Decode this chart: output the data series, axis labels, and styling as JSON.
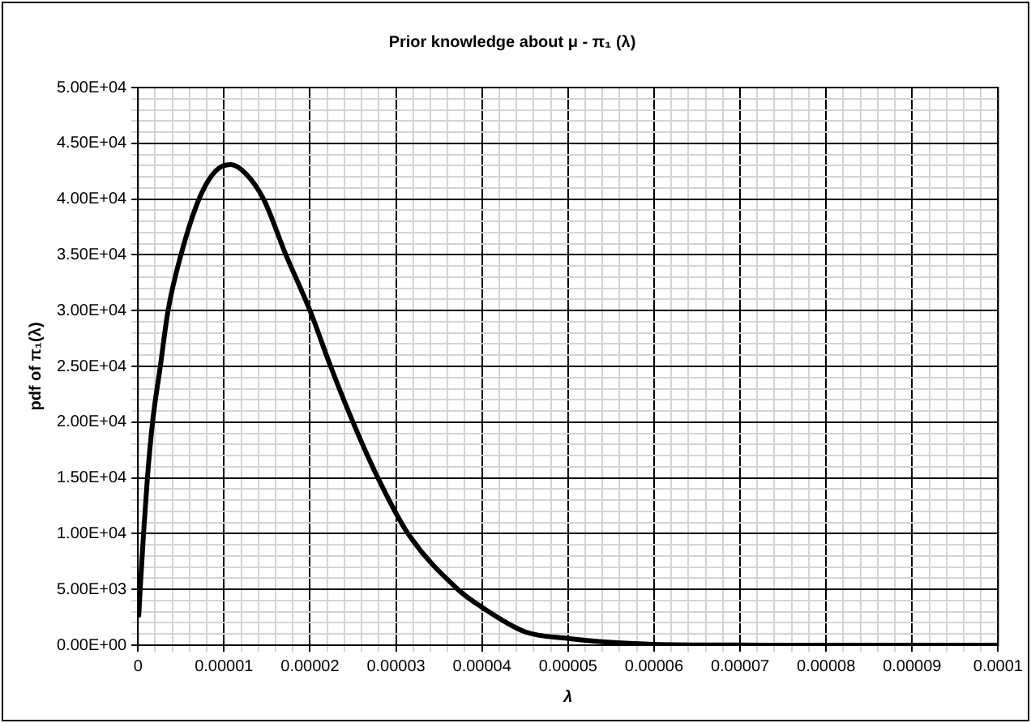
{
  "chart_data": {
    "type": "line",
    "title": "Prior knowledge about μ - π₁ (λ)",
    "xlabel": "λ",
    "ylabel": "pdf of π₁(λ)",
    "x": [
      1e-07,
      2.6e-07,
      6.5e-07,
      1.1e-06,
      1.7e-06,
      2.6e-06,
      3.5e-06,
      5e-06,
      7.1e-06,
      9e-06,
      1.08e-05,
      1.25e-05,
      1.46e-05,
      1.72e-05,
      2e-05,
      2.24e-05,
      2.5e-05,
      2.79e-05,
      3.14e-05,
      3.72e-05,
      4e-05,
      4.5e-05,
      5e-05,
      5.5e-05,
      6e-05,
      7e-05,
      8e-05,
      9e-05,
      0.0001
    ],
    "series": [
      {
        "color": "#000000",
        "values": [
          2700,
          5000,
          10000,
          15000,
          20000,
          25000,
          30000,
          35000,
          40000,
          42500,
          43100,
          42300,
          40000,
          35000,
          30000,
          25000,
          20000,
          15000,
          10000,
          5000,
          3400,
          1200,
          600,
          250,
          80,
          10,
          0,
          0,
          0
        ]
      }
    ],
    "marker": "none",
    "line_style": "solid",
    "legend": false,
    "grid": true,
    "xlim": [
      0,
      0.0001
    ],
    "ylim": [
      0,
      50000
    ],
    "xticks": [
      {
        "value": 0,
        "label": "0"
      },
      {
        "value": 2e-06,
        "label": null
      },
      {
        "value": 4e-06,
        "label": null
      },
      {
        "value": 6e-06,
        "label": null
      },
      {
        "value": 8e-06,
        "label": null
      },
      {
        "value": 1e-05,
        "label": "0.00001"
      },
      {
        "value": 1.2e-05,
        "label": null
      },
      {
        "value": 1.4e-05,
        "label": null
      },
      {
        "value": 1.6e-05,
        "label": null
      },
      {
        "value": 1.8e-05,
        "label": null
      },
      {
        "value": 2e-05,
        "label": "0.00002"
      },
      {
        "value": 2.2e-05,
        "label": null
      },
      {
        "value": 2.4e-05,
        "label": null
      },
      {
        "value": 2.6e-05,
        "label": null
      },
      {
        "value": 2.8e-05,
        "label": null
      },
      {
        "value": 3e-05,
        "label": "0.00003"
      },
      {
        "value": 3.2e-05,
        "label": null
      },
      {
        "value": 3.4e-05,
        "label": null
      },
      {
        "value": 3.6e-05,
        "label": null
      },
      {
        "value": 3.8e-05,
        "label": null
      },
      {
        "value": 4e-05,
        "label": "0.00004"
      },
      {
        "value": 4.2e-05,
        "label": null
      },
      {
        "value": 4.4e-05,
        "label": null
      },
      {
        "value": 4.6e-05,
        "label": null
      },
      {
        "value": 4.8e-05,
        "label": null
      },
      {
        "value": 5e-05,
        "label": "0.00005"
      },
      {
        "value": 5.2e-05,
        "label": null
      },
      {
        "value": 5.4e-05,
        "label": null
      },
      {
        "value": 5.6e-05,
        "label": null
      },
      {
        "value": 5.8e-05,
        "label": null
      },
      {
        "value": 6e-05,
        "label": "0.00006"
      },
      {
        "value": 6.2e-05,
        "label": null
      },
      {
        "value": 6.4e-05,
        "label": null
      },
      {
        "value": 6.6e-05,
        "label": null
      },
      {
        "value": 6.8e-05,
        "label": null
      },
      {
        "value": 7e-05,
        "label": "0.00007"
      },
      {
        "value": 7.2e-05,
        "label": null
      },
      {
        "value": 7.4e-05,
        "label": null
      },
      {
        "value": 7.6e-05,
        "label": null
      },
      {
        "value": 7.8e-05,
        "label": null
      },
      {
        "value": 8e-05,
        "label": "0.00008"
      },
      {
        "value": 8.2e-05,
        "label": null
      },
      {
        "value": 8.4e-05,
        "label": null
      },
      {
        "value": 8.6e-05,
        "label": null
      },
      {
        "value": 8.8e-05,
        "label": null
      },
      {
        "value": 9e-05,
        "label": "0.00009"
      },
      {
        "value": 9.2e-05,
        "label": null
      },
      {
        "value": 9.4e-05,
        "label": null
      },
      {
        "value": 9.6e-05,
        "label": null
      },
      {
        "value": 9.8e-05,
        "label": null
      },
      {
        "value": 0.0001,
        "label": "0.0001"
      }
    ],
    "yticks": [
      {
        "value": 0,
        "label": "0.00E+00"
      },
      {
        "value": 1000,
        "label": null
      },
      {
        "value": 2000,
        "label": null
      },
      {
        "value": 3000,
        "label": null
      },
      {
        "value": 4000,
        "label": null
      },
      {
        "value": 5000,
        "label": "5.00E+03"
      },
      {
        "value": 6000,
        "label": null
      },
      {
        "value": 7000,
        "label": null
      },
      {
        "value": 8000,
        "label": null
      },
      {
        "value": 9000,
        "label": null
      },
      {
        "value": 10000,
        "label": "1.00E+04"
      },
      {
        "value": 11000,
        "label": null
      },
      {
        "value": 12000,
        "label": null
      },
      {
        "value": 13000,
        "label": null
      },
      {
        "value": 14000,
        "label": null
      },
      {
        "value": 15000,
        "label": "1.50E+04"
      },
      {
        "value": 16000,
        "label": null
      },
      {
        "value": 17000,
        "label": null
      },
      {
        "value": 18000,
        "label": null
      },
      {
        "value": 19000,
        "label": null
      },
      {
        "value": 20000,
        "label": "2.00E+04"
      },
      {
        "value": 21000,
        "label": null
      },
      {
        "value": 22000,
        "label": null
      },
      {
        "value": 23000,
        "label": null
      },
      {
        "value": 24000,
        "label": null
      },
      {
        "value": 25000,
        "label": "2.50E+04"
      },
      {
        "value": 26000,
        "label": null
      },
      {
        "value": 27000,
        "label": null
      },
      {
        "value": 28000,
        "label": null
      },
      {
        "value": 29000,
        "label": null
      },
      {
        "value": 30000,
        "label": "3.00E+04"
      },
      {
        "value": 31000,
        "label": null
      },
      {
        "value": 32000,
        "label": null
      },
      {
        "value": 33000,
        "label": null
      },
      {
        "value": 34000,
        "label": null
      },
      {
        "value": 35000,
        "label": "3.50E+04"
      },
      {
        "value": 36000,
        "label": null
      },
      {
        "value": 37000,
        "label": null
      },
      {
        "value": 38000,
        "label": null
      },
      {
        "value": 39000,
        "label": null
      },
      {
        "value": 40000,
        "label": "4.00E+04"
      },
      {
        "value": 41000,
        "label": null
      },
      {
        "value": 42000,
        "label": null
      },
      {
        "value": 43000,
        "label": null
      },
      {
        "value": 44000,
        "label": null
      },
      {
        "value": 45000,
        "label": "4.50E+04"
      },
      {
        "value": 46000,
        "label": null
      },
      {
        "value": 47000,
        "label": null
      },
      {
        "value": 48000,
        "label": null
      },
      {
        "value": 49000,
        "label": null
      },
      {
        "value": 50000,
        "label": "5.00E+04"
      }
    ]
  }
}
